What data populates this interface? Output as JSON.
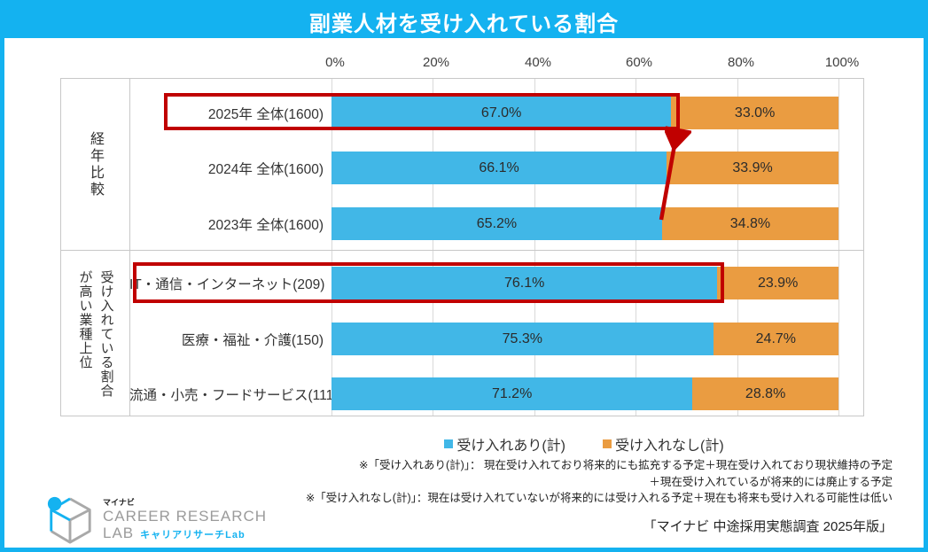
{
  "title": "副業人材を受け入れている割合",
  "chart_data": {
    "type": "bar",
    "orientation": "horizontal",
    "stacked": true,
    "xlim": [
      0,
      100
    ],
    "x_ticks": [
      "0%",
      "20%",
      "40%",
      "60%",
      "80%",
      "100%"
    ],
    "grid": true,
    "legend_position": "bottom",
    "legend": [
      {
        "label": "受け入れあり(計)",
        "color": "#41B7E7"
      },
      {
        "label": "受け入れなし(計)",
        "color": "#EA9C41"
      }
    ],
    "groups": [
      {
        "label": "経年比較",
        "rows": [
          {
            "label": "2025年 全体(1600)",
            "accept": 67.0,
            "reject": 33.0,
            "highlighted": true
          },
          {
            "label": "2024年 全体(1600)",
            "accept": 66.1,
            "reject": 33.9,
            "highlighted": false
          },
          {
            "label": "2023年 全体(1600)",
            "accept": 65.2,
            "reject": 34.8,
            "highlighted": false
          }
        ]
      },
      {
        "label_columns": [
          "受け入れている割合",
          "が高い業種上位"
        ],
        "rows": [
          {
            "label": "IT・通信・インターネット(209)",
            "accept": 76.1,
            "reject": 23.9,
            "highlighted": true
          },
          {
            "label": "医療・福祉・介護(150)",
            "accept": 75.3,
            "reject": 24.7,
            "highlighted": false
          },
          {
            "label": "流通・小売・フードサービス(111)",
            "accept": 71.2,
            "reject": 28.8,
            "highlighted": false
          }
        ]
      }
    ],
    "annotations": {
      "highlight_color": "#C00000",
      "highlighted_rows": [
        "2025年 全体(1600)",
        "IT・通信・インターネット(209)"
      ],
      "arrow": {
        "from_row": "2023年 全体(1600)",
        "to_row": "2025年 全体(1600)",
        "color": "#C00000"
      }
    }
  },
  "footnotes": [
    "※「受け入れあり(計)」： 現在受け入れており将来的にも拡充する予定＋現在受け入れており現状維持の予定",
    "＋現在受け入れているが将来的には廃止する予定",
    "※「受け入れなし(計)」：現在は受け入れていないが将来的には受け入れる予定＋現在も将来も受け入れる可能性は低い"
  ],
  "source": "「マイナビ 中途採用実態調査 2025年版」",
  "logo": {
    "brand": "マイナビ",
    "line1": "CAREER RESEARCH",
    "line2": "LAB",
    "sub": "キャリアリサーチLab"
  },
  "colors": {
    "accent_cyan": "#14B2F0",
    "bar_accept": "#41B7E7",
    "bar_reject": "#EA9C41",
    "highlight_red": "#C00000"
  }
}
